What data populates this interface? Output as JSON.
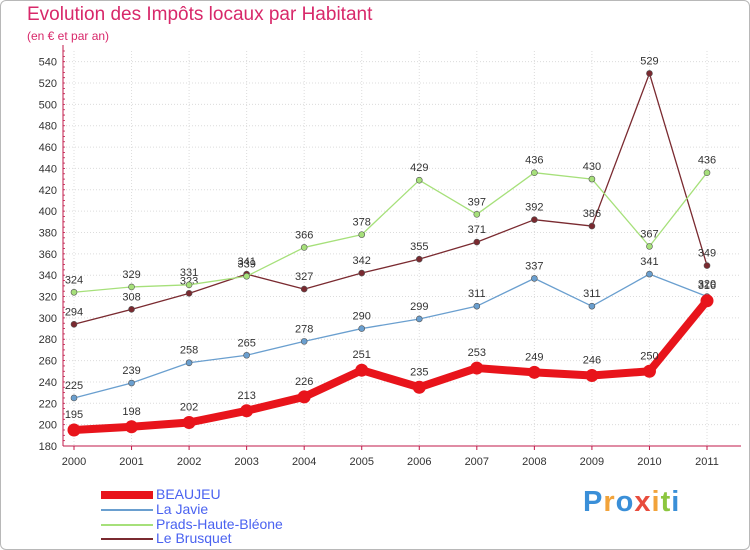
{
  "title": "Evolution des Impôts locaux par Habitant",
  "subtitle": "(en € et par an)",
  "brand": {
    "logo_text": "Proxiti",
    "colors": [
      "#3a8fd8",
      "#f2a33a",
      "#3a8fd8",
      "#e84c3d",
      "#f2a33a",
      "#8cc63f",
      "#3a8fd8"
    ]
  },
  "chart_data": {
    "type": "line",
    "x": [
      "2000",
      "2001",
      "2002",
      "2003",
      "2004",
      "2005",
      "2006",
      "2007",
      "2008",
      "2009",
      "2010",
      "2011"
    ],
    "ylim": [
      180,
      550
    ],
    "yticks": [
      180,
      200,
      220,
      240,
      260,
      280,
      300,
      320,
      340,
      360,
      380,
      400,
      420,
      440,
      460,
      480,
      500,
      520,
      540
    ],
    "grid": true,
    "xlabel": "",
    "ylabel": "",
    "legend_position": "bottom-left",
    "series": [
      {
        "name": "BEAUJEU",
        "color": "#e8141b",
        "values": [
          195,
          198,
          202,
          213,
          226,
          251,
          235,
          253,
          249,
          246,
          250,
          316
        ]
      },
      {
        "name": "La Javie",
        "color": "#6a9fcf",
        "values": [
          225,
          239,
          258,
          265,
          278,
          290,
          299,
          311,
          337,
          311,
          341,
          320
        ]
      },
      {
        "name": "Prads-Haute-Bléone",
        "color": "#a6e07a",
        "values": [
          324,
          329,
          331,
          339,
          366,
          378,
          429,
          397,
          436,
          430,
          367,
          436
        ]
      },
      {
        "name": "Le Brusquet",
        "color": "#7a2a30",
        "values": [
          294,
          308,
          323,
          341,
          327,
          342,
          355,
          371,
          392,
          386,
          529,
          349
        ]
      }
    ]
  }
}
